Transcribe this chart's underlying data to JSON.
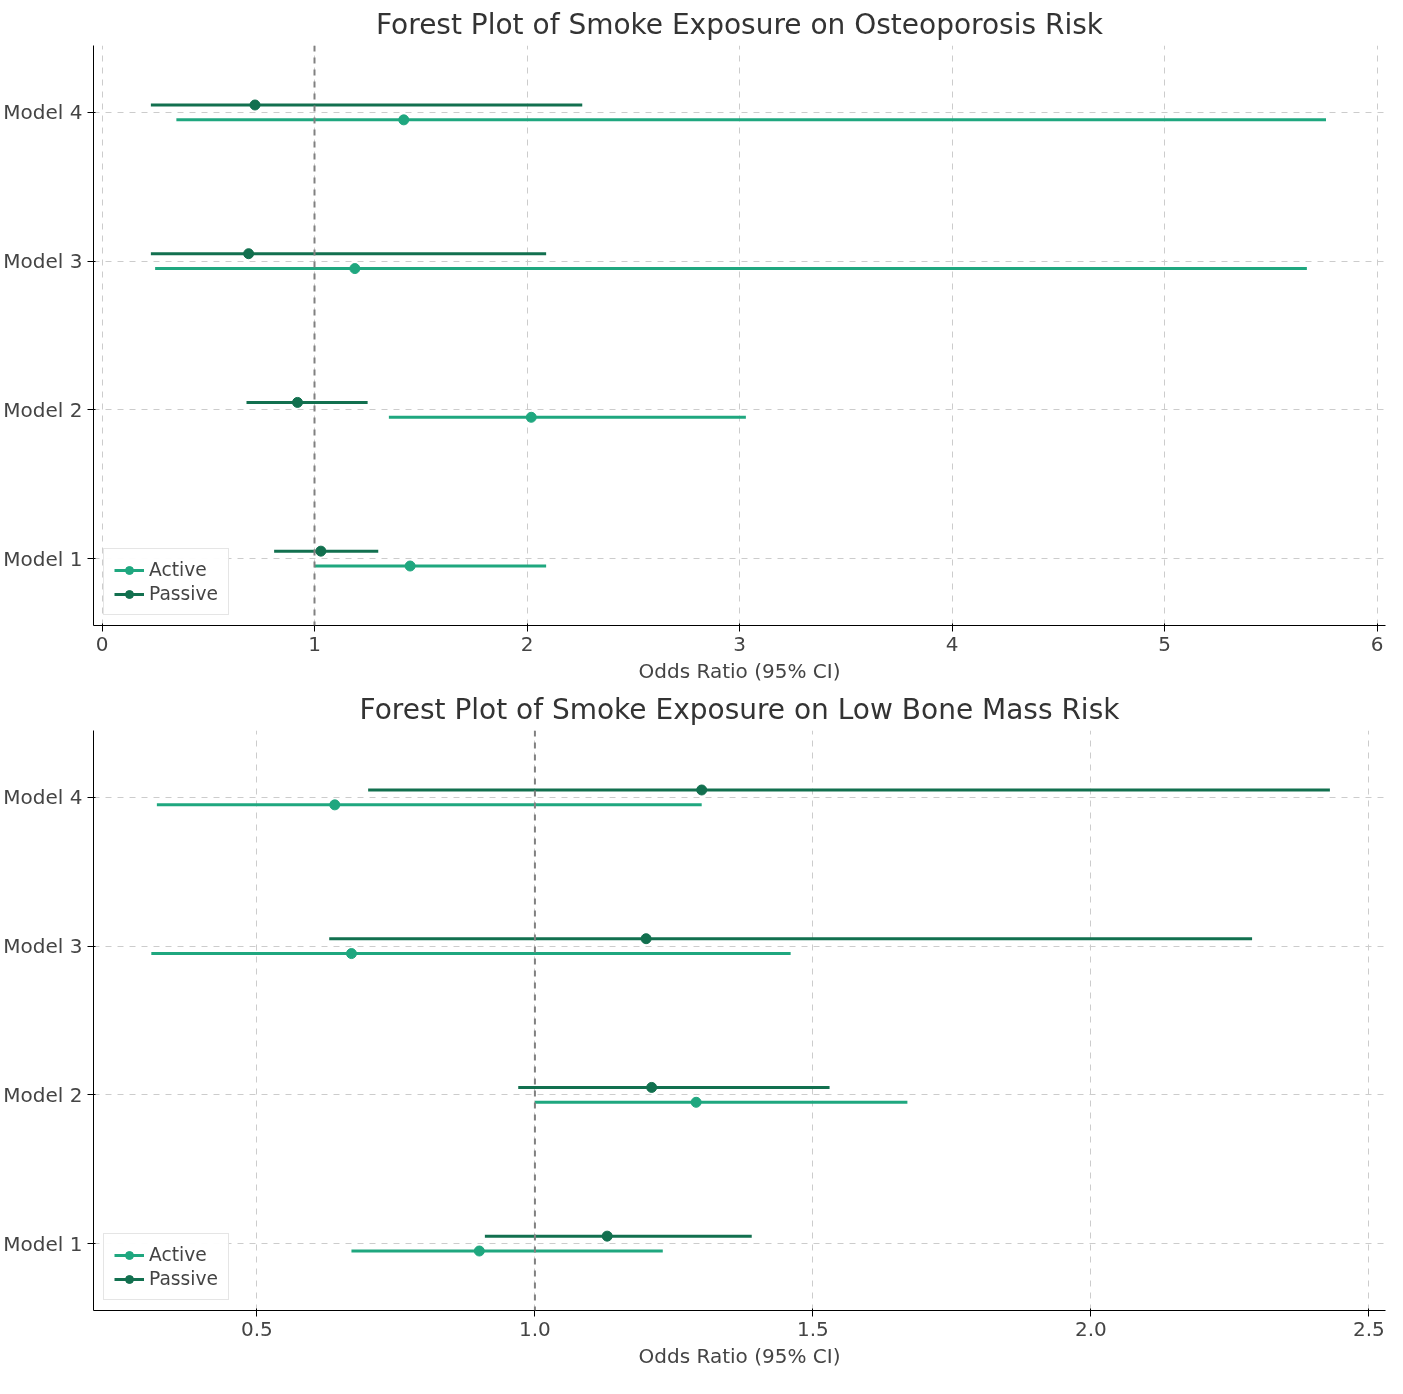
{
  "chart_data": [
    {
      "type": "scatter",
      "orientation": "horizontal",
      "title": "Forest Plot of Smoke Exposure on Osteoporosis Risk",
      "xlabel": "Odds Ratio (95% CI)",
      "categories": [
        "Model 4",
        "Model 3",
        "Model 2",
        "Model 1"
      ],
      "xlim": [
        -0.04,
        6.04
      ],
      "xticks": [
        0,
        1,
        2,
        3,
        4,
        5,
        6
      ],
      "grid": true,
      "legend": "bottom left",
      "marker": "circle",
      "ref_lines": [
        {
          "axis": "x",
          "value": 1,
          "label": null,
          "color": "#808080",
          "line_style": "dashed"
        }
      ],
      "series": [
        {
          "name": "Active",
          "color": "#1fa77f",
          "values": [
            1.42,
            1.19,
            2.02,
            1.45
          ],
          "errors": [
            [
              0.35,
              5.76
            ],
            [
              0.25,
              5.67
            ],
            [
              1.35,
              3.03
            ],
            [
              1.0,
              2.09
            ]
          ]
        },
        {
          "name": "Passive",
          "color": "#12704f",
          "values": [
            0.72,
            0.69,
            0.92,
            1.03
          ],
          "errors": [
            [
              0.23,
              2.26
            ],
            [
              0.23,
              2.09
            ],
            [
              0.68,
              1.25
            ],
            [
              0.81,
              1.3
            ]
          ]
        }
      ]
    },
    {
      "type": "scatter",
      "orientation": "horizontal",
      "title": "Forest Plot of Smoke Exposure on Low Bone Mass Risk",
      "xlabel": "Odds Ratio (95% CI)",
      "categories": [
        "Model 4",
        "Model 3",
        "Model 2",
        "Model 1"
      ],
      "xlim": [
        0.206,
        2.53
      ],
      "xticks": [
        {
          "value": 0.5,
          "label": "0.5"
        },
        {
          "value": 1,
          "label": "1.0"
        },
        {
          "value": 1.5,
          "label": "1.5"
        },
        {
          "value": 2,
          "label": "2.0"
        },
        {
          "value": 2.5,
          "label": "2.5"
        }
      ],
      "grid": true,
      "legend": "bottom left",
      "marker": "circle",
      "ref_lines": [
        {
          "axis": "x",
          "value": 1,
          "label": null,
          "color": "#808080",
          "line_style": "dashed"
        }
      ],
      "series": [
        {
          "name": "Active",
          "color": "#1fa77f",
          "values": [
            0.64,
            0.67,
            1.29,
            0.9
          ],
          "errors": [
            [
              0.32,
              1.3
            ],
            [
              0.31,
              1.46
            ],
            [
              1.0,
              1.67
            ],
            [
              0.67,
              1.23
            ]
          ]
        },
        {
          "name": "Passive",
          "color": "#12704f",
          "values": [
            1.3,
            1.2,
            1.21,
            1.13
          ],
          "errors": [
            [
              0.7,
              2.43
            ],
            [
              0.63,
              2.29
            ],
            [
              0.97,
              1.53
            ],
            [
              0.91,
              1.39
            ]
          ]
        }
      ]
    }
  ]
}
